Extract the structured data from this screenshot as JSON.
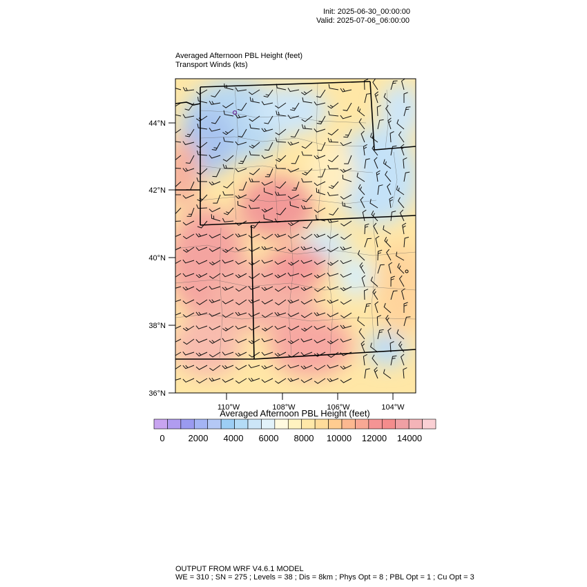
{
  "header": {
    "init": "Init: 2025-06-30_00:00:00",
    "valid": "Valid: 2025-07-06_06:00:00"
  },
  "titles": {
    "main": "Averaged Afternoon PBL Height   (feet)",
    "sub": "Transport Winds   (kts)"
  },
  "axes": {
    "lat_labels": [
      "44°N",
      "42°N",
      "40°N",
      "38°N",
      "36°N"
    ],
    "lon_labels": [
      "110°W",
      "108°W",
      "106°W",
      "104°W"
    ]
  },
  "colorbar": {
    "title": "Averaged Afternoon PBL Height  (feet)",
    "labels": [
      "0",
      "2000",
      "4000",
      "6000",
      "8000",
      "10000",
      "12000",
      "14000"
    ],
    "colors": [
      "#c8a4f0",
      "#b09cf0",
      "#9a9af0",
      "#a4b4f4",
      "#b4c8f6",
      "#9ccef4",
      "#b4dcf6",
      "#cce6f8",
      "#e2f2fa",
      "#fffae0",
      "#fff2c0",
      "#ffe8a8",
      "#ffdc9a",
      "#ffcc90",
      "#fcb890",
      "#f8a894",
      "#f49494",
      "#f48c8c",
      "#f0a0a4",
      "#f4b4b8",
      "#fad0d4"
    ]
  },
  "footer": {
    "line1": "OUTPUT FROM WRF V4.6.1 MODEL",
    "line2": "WE = 310 ; SN = 275 ; Levels = 38 ; Dis = 8km ; Phys Opt = 8 ; PBL Opt = 1 ; Cu Opt = 3"
  }
}
